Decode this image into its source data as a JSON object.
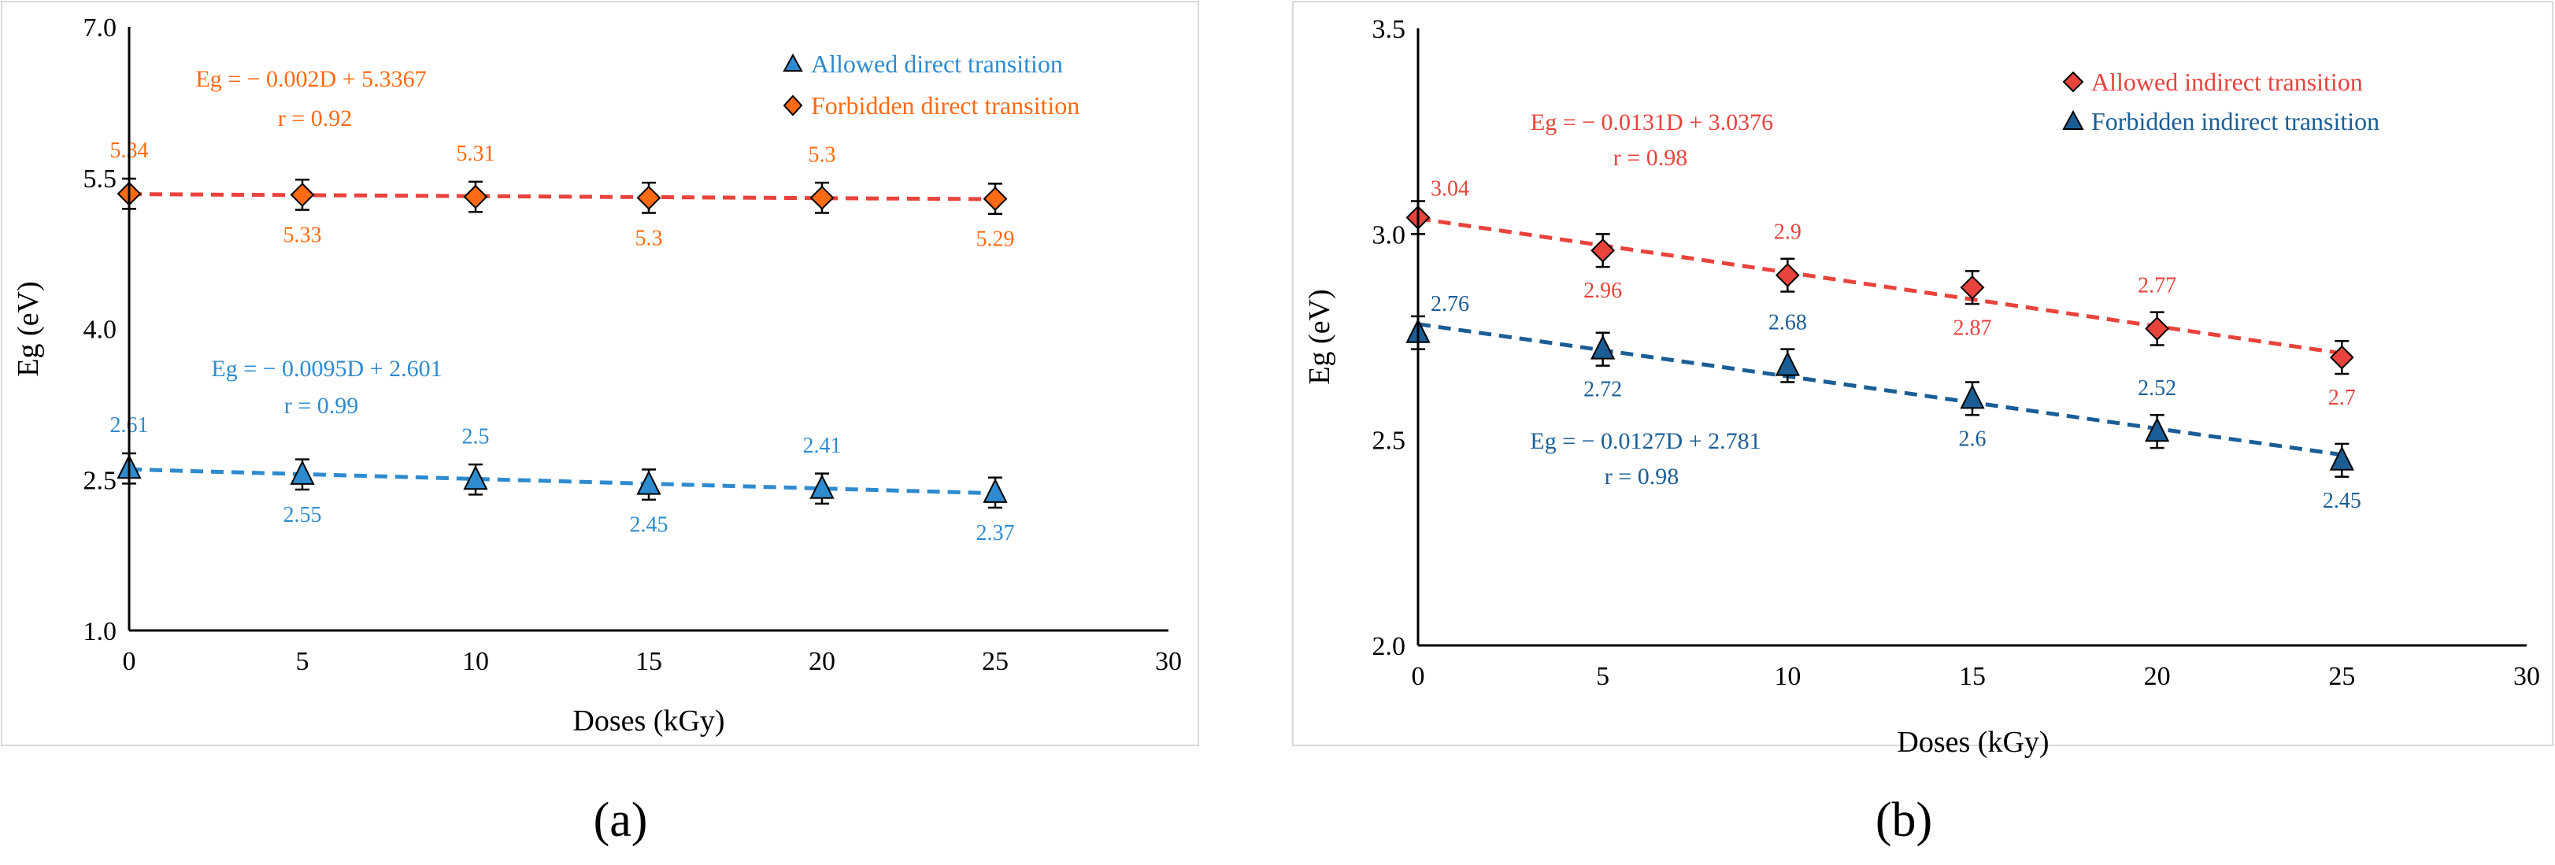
{
  "chart_data": [
    {
      "panel_label": "(a)",
      "type": "scatter",
      "xlabel": "Doses (kGy)",
      "ylabel": "Eg (eV)",
      "xlim": [
        0,
        30
      ],
      "ylim": [
        1.0,
        7.0
      ],
      "x_ticks": [
        "0",
        "5",
        "10",
        "15",
        "20",
        "25",
        "30"
      ],
      "y_ticks": [
        "1.0",
        "2.5",
        "4.0",
        "5.5",
        "7.0"
      ],
      "grid": false,
      "legend_position": "top-right",
      "series": [
        {
          "name": "Allowed direct transition",
          "marker": "triangle",
          "color": "#2e8bcf",
          "fit_color": "#2e8bcf",
          "x": [
            0,
            5,
            10,
            15,
            20,
            25
          ],
          "values": [
            2.61,
            2.55,
            2.5,
            2.45,
            2.41,
            2.37
          ],
          "labels": [
            "2.61",
            "2.55",
            "2.5",
            "2.45",
            "2.41",
            "2.37"
          ],
          "label_side": [
            "above",
            "below",
            "above",
            "below",
            "above",
            "below"
          ],
          "error": 0.15,
          "fit": {
            "slope": -0.0095,
            "intercept": 2.601
          },
          "equation": "Eg = − 0.0095D + 2.601",
          "r": "r = 0.99"
        },
        {
          "name": "Forbidden direct transition",
          "marker": "diamond",
          "color": "#ff6a13",
          "fit_color": "#e8433c",
          "x": [
            0,
            5,
            10,
            15,
            20,
            25
          ],
          "values": [
            5.34,
            5.33,
            5.31,
            5.3,
            5.3,
            5.29
          ],
          "labels": [
            "5.34",
            "5.33",
            "5.31",
            "5.3",
            "5.3",
            "5.29"
          ],
          "label_side": [
            "above",
            "below",
            "above",
            "below",
            "above",
            "below"
          ],
          "error": 0.15,
          "fit": {
            "slope": -0.002,
            "intercept": 5.3367
          },
          "equation": "Eg = − 0.002D + 5.3367",
          "r": "r = 0.92"
        }
      ]
    },
    {
      "panel_label": "(b)",
      "type": "scatter",
      "xlabel": "Doses (kGy)",
      "ylabel": "Eg (eV)",
      "xlim": [
        0,
        30
      ],
      "ylim": [
        2.0,
        3.5
      ],
      "x_ticks": [
        "0",
        "5",
        "10",
        "15",
        "20",
        "25",
        "30"
      ],
      "y_ticks": [
        "2.0",
        "2.5",
        "3.0",
        "3.5"
      ],
      "grid": false,
      "legend_position": "top-right",
      "series": [
        {
          "name": "Allowed indirect transition",
          "marker": "diamond",
          "color": "#e8433c",
          "fit_color": "#e8433c",
          "x": [
            0,
            5,
            10,
            15,
            20,
            25
          ],
          "values": [
            3.04,
            2.96,
            2.9,
            2.87,
            2.77,
            2.7
          ],
          "labels": [
            "3.04",
            "2.96",
            "2.9",
            "2.87",
            "2.77",
            "2.7"
          ],
          "label_side": [
            "right",
            "below",
            "above",
            "below",
            "above",
            "below"
          ],
          "error": 0.04,
          "fit": {
            "slope": -0.0131,
            "intercept": 3.0376
          },
          "equation": "Eg = − 0.0131D + 3.0376",
          "r": "r = 0.98"
        },
        {
          "name": "Forbidden indirect transition",
          "marker": "triangle",
          "color": "#1b5e96",
          "fit_color": "#1b5e96",
          "x": [
            0,
            5,
            10,
            15,
            20,
            25
          ],
          "values": [
            2.76,
            2.72,
            2.68,
            2.6,
            2.52,
            2.45
          ],
          "labels": [
            "2.76",
            "2.72",
            "2.68",
            "2.6",
            "2.52",
            "2.45"
          ],
          "label_side": [
            "right",
            "below",
            "above",
            "below",
            "above",
            "below"
          ],
          "error": 0.04,
          "fit": {
            "slope": -0.0127,
            "intercept": 2.781
          },
          "equation": "Eg = − 0.0127D + 2.781",
          "r": "r = 0.98"
        }
      ]
    }
  ]
}
